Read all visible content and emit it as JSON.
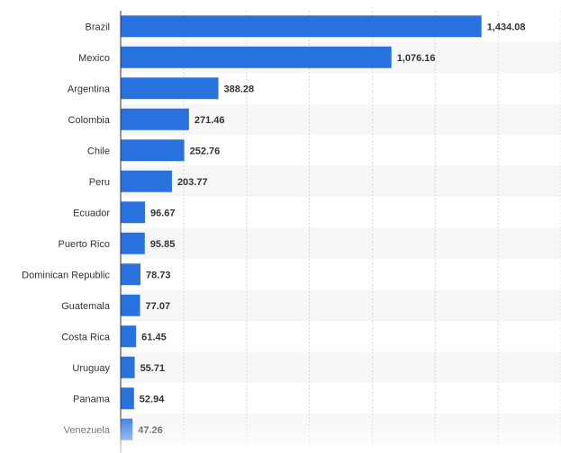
{
  "colors": {
    "bar": "#2872e0",
    "band": "#f7f7f7",
    "grid": "#d9d9d9",
    "axis": "#333333",
    "text": "#333333"
  },
  "chart_data": {
    "type": "bar",
    "orientation": "horizontal",
    "categories": [
      "Brazil",
      "Mexico",
      "Argentina",
      "Colombia",
      "Chile",
      "Peru",
      "Ecuador",
      "Puerto Rico",
      "Dominican Republic",
      "Guatemala",
      "Costa Rica",
      "Uruguay",
      "Panama",
      "Venezuela"
    ],
    "values": [
      1434.08,
      1076.16,
      388.28,
      271.46,
      252.76,
      203.77,
      96.67,
      95.85,
      78.73,
      77.07,
      61.45,
      55.71,
      52.94,
      47.26
    ],
    "value_labels": [
      "1,434.08",
      "1,076.16",
      "388.28",
      "271.46",
      "252.76",
      "203.77",
      "96.67",
      "95.85",
      "78.73",
      "77.07",
      "61.45",
      "55.71",
      "52.94",
      "47.26"
    ],
    "xlim": [
      0,
      1750
    ],
    "grid": true,
    "title": "",
    "xlabel": "",
    "ylabel": ""
  }
}
